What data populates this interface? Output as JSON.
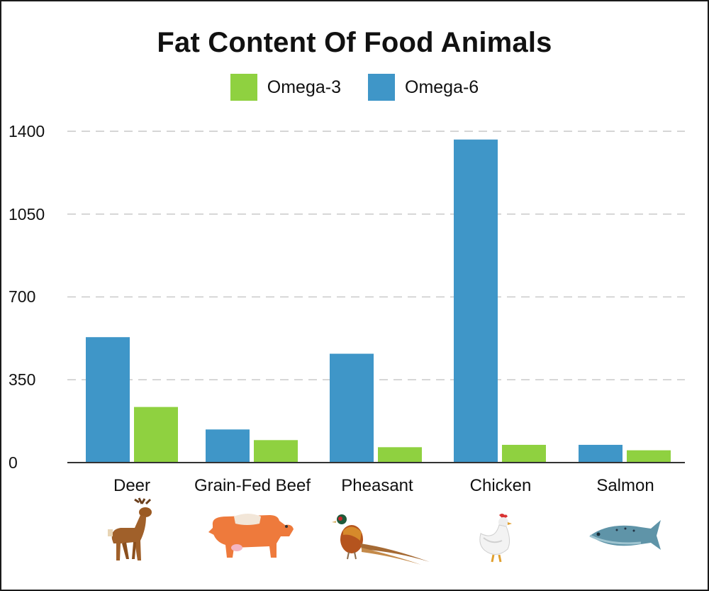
{
  "chart_data": {
    "type": "bar",
    "title": "Fat Content Of Food Animals",
    "categories": [
      "Deer",
      "Grain-Fed Beef",
      "Pheasant",
      "Chicken",
      "Salmon"
    ],
    "series": [
      {
        "name": "Omega-6",
        "color": "#3f96c8",
        "values": [
          530,
          140,
          460,
          1365,
          75
        ]
      },
      {
        "name": "Omega-3",
        "color": "#8fd140",
        "values": [
          235,
          95,
          65,
          75,
          52
        ]
      }
    ],
    "yticks": [
      "1400",
      "1050",
      "700",
      "350",
      "0"
    ],
    "ylim": [
      0,
      1400
    ],
    "grid": true,
    "legend_position": "top-center",
    "icons": [
      "deer-icon",
      "cow-icon",
      "pheasant-icon",
      "chicken-icon",
      "salmon-icon"
    ]
  }
}
